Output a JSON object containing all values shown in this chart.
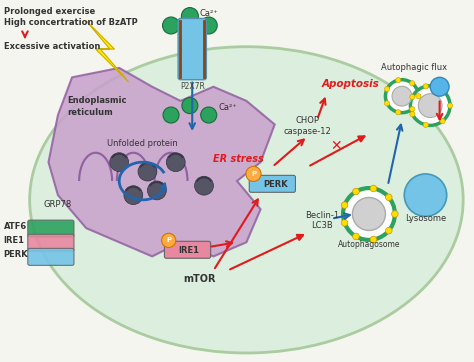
{
  "bg_color": "#f0f7f0",
  "cell_color": "#d8eed8",
  "er_color": "#c8a8d0",
  "title_text1": "Prolonged exercise",
  "title_text2": "High concertration of BzATP",
  "title_text3": "Excessive activation",
  "ca_label": "Ca²⁺",
  "p2x7r_label": "P2X7R",
  "er_label1": "Endoplasmic",
  "er_label2": "reticulum",
  "grp78_label": "GRP78",
  "atf6_label": "ATF6",
  "ire1_label1": "IRE1",
  "perk_label1": "PERK",
  "unfolded_label": "Unfolded protein",
  "er_stress_label": "ER stress",
  "ire1_label2": "IRE1",
  "perk_label2": "PERK",
  "mtor_label": "mTOR",
  "chop_label": "CHOP\ncaspase-12",
  "apoptosis_label": "Apoptosis",
  "autophagic_label": "Autophagic flux",
  "lysosome_label": "Lysosome",
  "autophagosome_label": "Autophagosome",
  "beclin_label": "Beclin-1\nLC3B",
  "red": "#e31a1c",
  "blue": "#2166ac",
  "dark_blue": "#1a3a6b",
  "green": "#2ca25f",
  "purple": "#9970ab",
  "yellow": "#ffff33",
  "light_blue": "#74c4e8",
  "cyan": "#56b4e9",
  "gold": "#f5a623",
  "dark_green": "#1a7a3a",
  "pink": "#e887a0",
  "arrow_red": "#cc0000",
  "arrow_blue": "#1a4fa0"
}
